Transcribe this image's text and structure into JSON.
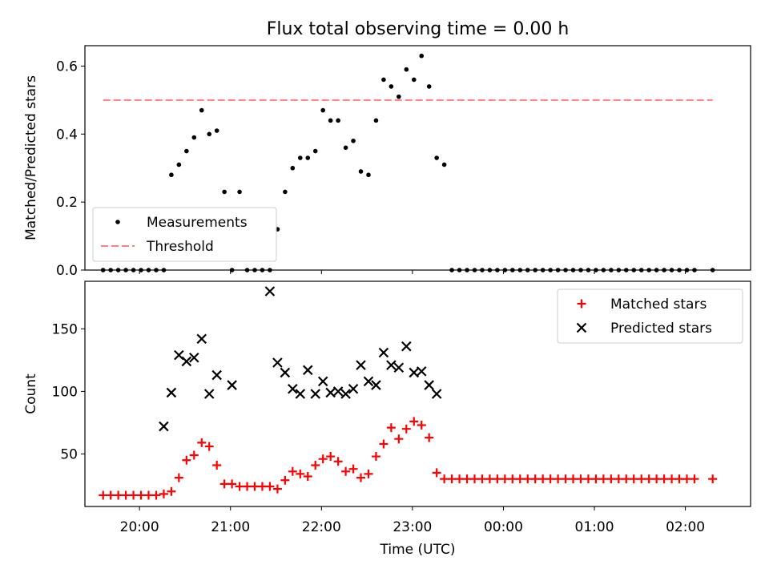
{
  "chart_data": [
    {
      "type": "scatter",
      "title": "Flux total observing time = 0.00 h",
      "xlabel": "",
      "ylabel": "Matched/Predicted stars",
      "ylim": [
        0,
        0.66
      ],
      "yticks": [
        0.0,
        0.2,
        0.4,
        0.6
      ],
      "ytick_labels": [
        "0.0",
        "0.2",
        "0.4",
        "0.6"
      ],
      "legend_position": "lower-left",
      "series": [
        {
          "name": "Measurements",
          "color": "#000000",
          "marker": "dot",
          "x": [
            "19:36",
            "19:41",
            "19:46",
            "19:51",
            "19:56",
            "20:01",
            "20:06",
            "20:11",
            "20:16",
            "20:21",
            "20:26",
            "20:31",
            "20:36",
            "20:41",
            "20:46",
            "20:51",
            "20:56",
            "21:01",
            "21:06",
            "21:11",
            "21:16",
            "21:21",
            "21:26",
            "21:31",
            "21:36",
            "21:41",
            "21:46",
            "21:51",
            "21:56",
            "22:01",
            "22:06",
            "22:11",
            "22:16",
            "22:21",
            "22:26",
            "22:31",
            "22:36",
            "22:41",
            "22:46",
            "22:51",
            "22:56",
            "23:01",
            "23:06",
            "23:11",
            "23:16",
            "23:21",
            "23:26",
            "23:31",
            "23:36",
            "23:41",
            "23:46",
            "23:51",
            "23:56",
            "00:01",
            "00:06",
            "00:11",
            "00:16",
            "00:21",
            "00:26",
            "00:31",
            "00:36",
            "00:41",
            "00:46",
            "00:51",
            "00:56",
            "01:01",
            "01:06",
            "01:11",
            "01:16",
            "01:21",
            "01:26",
            "01:31",
            "01:36",
            "01:41",
            "01:46",
            "01:51",
            "01:56",
            "02:01",
            "02:06",
            "02:18"
          ],
          "values": [
            0,
            0,
            0,
            0,
            0,
            0,
            0,
            0,
            0,
            0.28,
            0.31,
            0.35,
            0.39,
            0.47,
            0.4,
            0.41,
            0.23,
            0,
            0.23,
            0,
            0,
            0,
            0,
            0.12,
            0.23,
            0.3,
            0.33,
            0.33,
            0.35,
            0.47,
            0.44,
            0.44,
            0.36,
            0.38,
            0.29,
            0.28,
            0.44,
            0.56,
            0.54,
            0.51,
            0.59,
            0.56,
            0.63,
            0.54,
            0.33,
            0.31,
            0,
            0,
            0,
            0,
            0,
            0,
            0,
            0,
            0,
            0,
            0,
            0,
            0,
            0,
            0,
            0,
            0,
            0,
            0,
            0,
            0,
            0,
            0,
            0,
            0,
            0,
            0,
            0,
            0,
            0,
            0,
            0,
            0,
            0
          ]
        },
        {
          "name": "Threshold",
          "color": "#ff7f7f",
          "style": "dashed",
          "x": [
            "19:36",
            "02:18"
          ],
          "values": [
            0.5,
            0.5
          ]
        }
      ]
    },
    {
      "type": "scatter",
      "title": "",
      "xlabel": "Time (UTC)",
      "ylabel": "Count",
      "ylim": [
        8,
        188
      ],
      "yticks": [
        50,
        100,
        150
      ],
      "ytick_labels": [
        "50",
        "100",
        "150"
      ],
      "xtick_labels": [
        "20:00",
        "21:00",
        "22:00",
        "23:00",
        "00:00",
        "01:00",
        "02:00"
      ],
      "legend_position": "upper-right",
      "series": [
        {
          "name": "Matched stars",
          "color": "#ff0000",
          "marker": "plus",
          "x": [
            "19:36",
            "19:41",
            "19:46",
            "19:51",
            "19:56",
            "20:01",
            "20:06",
            "20:11",
            "20:16",
            "20:21",
            "20:26",
            "20:31",
            "20:36",
            "20:41",
            "20:46",
            "20:51",
            "20:56",
            "21:01",
            "21:06",
            "21:11",
            "21:16",
            "21:21",
            "21:26",
            "21:31",
            "21:36",
            "21:41",
            "21:46",
            "21:51",
            "21:56",
            "22:01",
            "22:06",
            "22:11",
            "22:16",
            "22:21",
            "22:26",
            "22:31",
            "22:36",
            "22:41",
            "22:46",
            "22:51",
            "22:56",
            "23:01",
            "23:06",
            "23:11",
            "23:16",
            "23:21",
            "23:26",
            "23:31",
            "23:36",
            "23:41",
            "23:46",
            "23:51",
            "23:56",
            "00:01",
            "00:06",
            "00:11",
            "00:16",
            "00:21",
            "00:26",
            "00:31",
            "00:36",
            "00:41",
            "00:46",
            "00:51",
            "00:56",
            "01:01",
            "01:06",
            "01:11",
            "01:16",
            "01:21",
            "01:26",
            "01:31",
            "01:36",
            "01:41",
            "01:46",
            "01:51",
            "01:56",
            "02:01",
            "02:06",
            "02:18"
          ],
          "values": [
            17,
            17,
            17,
            17,
            17,
            17,
            17,
            17,
            18,
            20,
            31,
            45,
            49,
            59,
            56,
            41,
            26,
            26,
            24,
            24,
            24,
            24,
            24,
            22,
            29,
            36,
            34,
            32,
            41,
            46,
            48,
            44,
            36,
            38,
            31,
            34,
            48,
            58,
            71,
            62,
            70,
            76,
            73,
            63,
            35,
            30,
            30,
            30,
            30,
            30,
            30,
            30,
            30,
            30,
            30,
            30,
            30,
            30,
            30,
            30,
            30,
            30,
            30,
            30,
            30,
            30,
            30,
            30,
            30,
            30,
            30,
            30,
            30,
            30,
            30,
            30,
            30,
            30,
            30,
            30
          ]
        },
        {
          "name": "Predicted stars",
          "color": "#000000",
          "marker": "x",
          "x": [
            "20:16",
            "20:21",
            "20:26",
            "20:31",
            "20:36",
            "20:41",
            "20:46",
            "20:51",
            "21:01",
            "21:26",
            "21:31",
            "21:36",
            "21:41",
            "21:46",
            "21:51",
            "21:56",
            "22:01",
            "22:06",
            "22:11",
            "22:16",
            "22:21",
            "22:26",
            "22:31",
            "22:36",
            "22:41",
            "22:46",
            "22:51",
            "22:56",
            "23:01",
            "23:06",
            "23:11",
            "23:16"
          ],
          "values": [
            72,
            99,
            129,
            124,
            127,
            142,
            98,
            113,
            105,
            180,
            123,
            115,
            102,
            98,
            117,
            98,
            108,
            99,
            100,
            98,
            102,
            121,
            108,
            105,
            131,
            121,
            119,
            136,
            115,
            116,
            105,
            98
          ]
        }
      ]
    }
  ]
}
